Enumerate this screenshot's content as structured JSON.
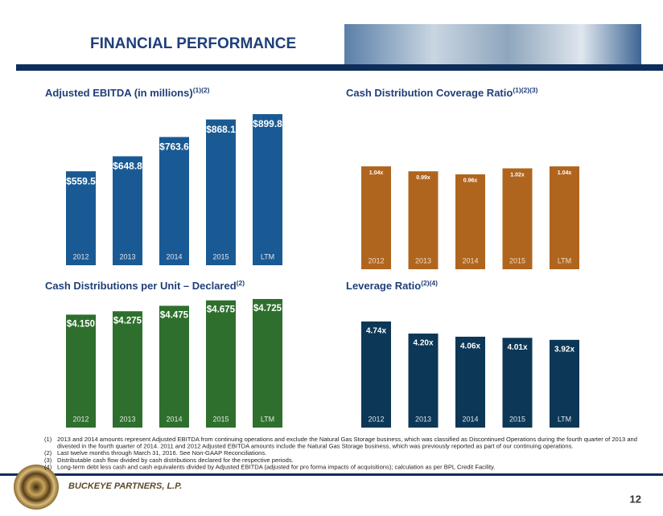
{
  "header": {
    "title": "FINANCIAL PERFORMANCE"
  },
  "chart_data": [
    {
      "type": "bar",
      "title": "Adjusted EBITDA (in millions)",
      "title_superscript": "(1)(2)",
      "categories": [
        "2012",
        "2013",
        "2014",
        "2015",
        "LTM"
      ],
      "values": [
        559.5,
        648.8,
        763.6,
        868.1,
        899.8
      ],
      "value_labels": [
        "$559.5",
        "$648.8",
        "$763.6",
        "$868.1",
        "$899.8"
      ],
      "color": "#1a5a94"
    },
    {
      "type": "bar",
      "title": "Cash Distribution Coverage Ratio",
      "title_superscript": "(1)(2)(3)",
      "categories": [
        "2012",
        "2013",
        "2014",
        "2015",
        "LTM"
      ],
      "values": [
        1.04,
        0.99,
        0.96,
        1.02,
        1.04
      ],
      "value_labels": [
        "1.04x",
        "0.99x",
        "0.96x",
        "1.02x",
        "1.04x"
      ],
      "color": "#b0651f"
    },
    {
      "type": "bar",
      "title": "Cash Distributions per Unit – Declared",
      "title_superscript": "(2)",
      "categories": [
        "2012",
        "2013",
        "2014",
        "2015",
        "LTM"
      ],
      "values": [
        4.15,
        4.275,
        4.475,
        4.675,
        4.725
      ],
      "value_labels": [
        "$4.150",
        "$4.275",
        "$4.475",
        "$4.675",
        "$4.725"
      ],
      "color": "#2e6f2d"
    },
    {
      "type": "bar",
      "title": "Leverage Ratio",
      "title_superscript": "(2)(4)",
      "categories": [
        "2012",
        "2013",
        "2014",
        "2015",
        "LTM"
      ],
      "values": [
        4.74,
        4.2,
        4.06,
        4.01,
        3.92
      ],
      "value_labels": [
        "4.74x",
        "4.20x",
        "4.06x",
        "4.01x",
        "3.92x"
      ],
      "color": "#0c3757"
    }
  ],
  "footnotes": [
    {
      "marker": "(1)",
      "lines": [
        "2013 and 2014 amounts represent Adjusted EBITDA from continuing operations and exclude the Natural Gas Storage business, which was classified as Discontinued Operations during the fourth quarter of 2013 and",
        "divested in the fourth quarter of 2014.  2011 and 2012 Adjusted EBITDA amounts include the Natural Gas Storage business, which was previously reported as part of our continuing operations."
      ]
    },
    {
      "marker": "(2)",
      "lines": [
        "Last twelve months through March 31, 2016. See Non-GAAP Reconciliations."
      ]
    },
    {
      "marker": "(3)",
      "lines": [
        "Distributable cash flow divided by cash distributions declared for the respective periods."
      ]
    },
    {
      "marker": "(4)",
      "lines": [
        "Long-term debt less cash and cash equivalents divided by Adjusted EBITDA (adjusted for pro forma impacts of acquisitions); calculation as per BPL Credit Facility."
      ]
    }
  ],
  "footer": {
    "company": "BUCKEYE PARTNERS, L.P.",
    "page": "12"
  }
}
